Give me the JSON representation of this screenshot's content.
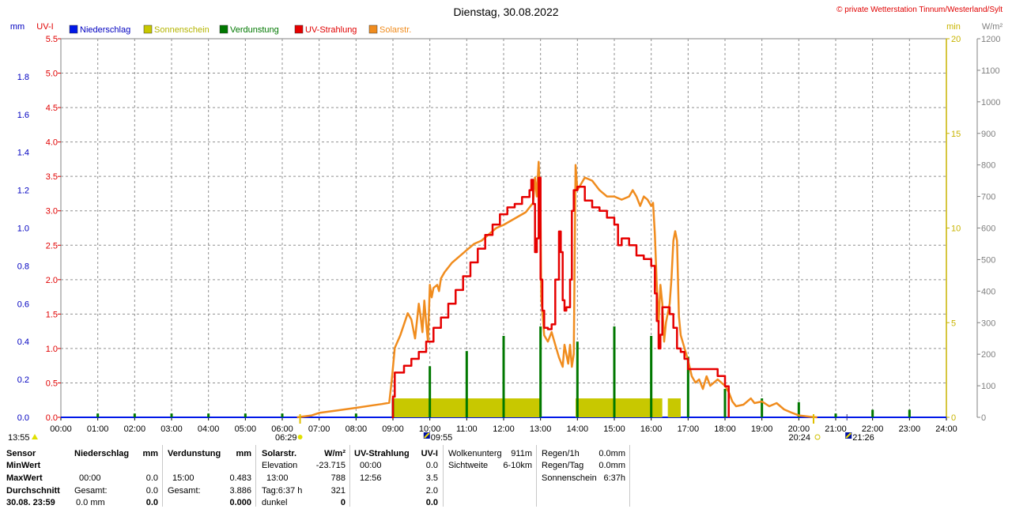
{
  "title": "Dienstag, 30.08.2022",
  "copyright": "© private Wetterstation Tinnum/Westerland/Sylt",
  "colors": {
    "niederschlag": "#0018e8",
    "sonnenschein": "#c8c800",
    "verdunstung": "#007800",
    "uv": "#e60000",
    "solar": "#f08c1e",
    "mm_axis": "#0000c0",
    "uv_axis": "#e00000",
    "min_axis": "#c8b400",
    "wm2_axis": "#808080"
  },
  "chart_data": {
    "type": "line",
    "x_unit": "hour of day",
    "xlim": [
      0,
      24
    ],
    "x_ticks": [
      "00:00",
      "01:00",
      "02:00",
      "03:00",
      "04:00",
      "05:00",
      "06:00",
      "07:00",
      "08:00",
      "09:00",
      "10:00",
      "11:00",
      "12:00",
      "13:00",
      "14:00",
      "15:00",
      "16:00",
      "17:00",
      "18:00",
      "19:00",
      "20:00",
      "21:00",
      "22:00",
      "23:00",
      "24:00"
    ],
    "axes": {
      "mm": {
        "label": "mm",
        "range": [
          0,
          2.0
        ],
        "ticks": [
          "0.0",
          "0.2",
          "0.4",
          "0.6",
          "0.8",
          "1.0",
          "1.2",
          "1.4",
          "1.6",
          "1.8"
        ]
      },
      "uv": {
        "label": "UV-I",
        "range": [
          0,
          5.5
        ],
        "ticks": [
          "0.0",
          "0.5",
          "1.0",
          "1.5",
          "2.0",
          "2.5",
          "3.0",
          "3.5",
          "4.0",
          "4.5",
          "5.0",
          "5.5"
        ]
      },
      "min": {
        "label": "min",
        "range": [
          0,
          20
        ],
        "ticks": [
          "0",
          "5",
          "10",
          "15",
          "20"
        ]
      },
      "wm2": {
        "label": "W/m²",
        "range": [
          0,
          1200
        ],
        "ticks": [
          "0",
          "100",
          "200",
          "300",
          "400",
          "500",
          "600",
          "700",
          "800",
          "900",
          "1000",
          "1100",
          "1200"
        ]
      }
    },
    "legend": [
      "Niederschlag",
      "Sonnenschein",
      "Verdunstung",
      "UV-Strahlung",
      "Solarstr."
    ],
    "legend_position": "top",
    "grid": true,
    "series": [
      {
        "name": "Solarstr.",
        "axis": "wm2",
        "points": [
          [
            6.4,
            0
          ],
          [
            6.8,
            6
          ],
          [
            7.0,
            14
          ],
          [
            7.5,
            22
          ],
          [
            8.0,
            30
          ],
          [
            8.4,
            37
          ],
          [
            8.7,
            42
          ],
          [
            8.9,
            46
          ],
          [
            8.97,
            120
          ],
          [
            9.05,
            220
          ],
          [
            9.2,
            260
          ],
          [
            9.4,
            330
          ],
          [
            9.5,
            310
          ],
          [
            9.6,
            250
          ],
          [
            9.7,
            360
          ],
          [
            9.75,
            320
          ],
          [
            9.8,
            270
          ],
          [
            9.85,
            370
          ],
          [
            9.9,
            300
          ],
          [
            9.95,
            240
          ],
          [
            10.0,
            420
          ],
          [
            10.05,
            380
          ],
          [
            10.1,
            410
          ],
          [
            10.2,
            420
          ],
          [
            10.25,
            400
          ],
          [
            10.3,
            440
          ],
          [
            10.4,
            460
          ],
          [
            10.6,
            490
          ],
          [
            10.8,
            510
          ],
          [
            11.0,
            530
          ],
          [
            11.2,
            550
          ],
          [
            11.4,
            560
          ],
          [
            11.6,
            580
          ],
          [
            11.8,
            600
          ],
          [
            12.0,
            610
          ],
          [
            12.3,
            630
          ],
          [
            12.6,
            650
          ],
          [
            12.8,
            680
          ],
          [
            12.85,
            760
          ],
          [
            12.9,
            700
          ],
          [
            12.95,
            810
          ],
          [
            13.0,
            650
          ],
          [
            13.02,
            380
          ],
          [
            13.1,
            260
          ],
          [
            13.2,
            240
          ],
          [
            13.3,
            270
          ],
          [
            13.4,
            230
          ],
          [
            13.5,
            190
          ],
          [
            13.6,
            160
          ],
          [
            13.65,
            230
          ],
          [
            13.7,
            200
          ],
          [
            13.75,
            170
          ],
          [
            13.8,
            230
          ],
          [
            13.85,
            160
          ],
          [
            13.9,
            200
          ],
          [
            13.95,
            800
          ],
          [
            14.0,
            720
          ],
          [
            14.1,
            740
          ],
          [
            14.2,
            760
          ],
          [
            14.4,
            750
          ],
          [
            14.6,
            720
          ],
          [
            14.8,
            700
          ],
          [
            15.0,
            700
          ],
          [
            15.2,
            690
          ],
          [
            15.4,
            700
          ],
          [
            15.5,
            720
          ],
          [
            15.6,
            700
          ],
          [
            15.7,
            670
          ],
          [
            15.8,
            700
          ],
          [
            15.9,
            690
          ],
          [
            16.0,
            670
          ],
          [
            16.05,
            680
          ],
          [
            16.1,
            580
          ],
          [
            16.15,
            420
          ],
          [
            16.2,
            300
          ],
          [
            16.25,
            420
          ],
          [
            16.3,
            360
          ],
          [
            16.35,
            240
          ],
          [
            16.4,
            300
          ],
          [
            16.5,
            360
          ],
          [
            16.55,
            440
          ],
          [
            16.6,
            560
          ],
          [
            16.65,
            590
          ],
          [
            16.7,
            560
          ],
          [
            16.75,
            320
          ],
          [
            16.8,
            260
          ],
          [
            16.9,
            220
          ],
          [
            17.0,
            180
          ],
          [
            17.1,
            130
          ],
          [
            17.2,
            110
          ],
          [
            17.3,
            120
          ],
          [
            17.4,
            90
          ],
          [
            17.5,
            130
          ],
          [
            17.6,
            100
          ],
          [
            17.8,
            120
          ],
          [
            18.0,
            100
          ],
          [
            18.1,
            80
          ],
          [
            18.2,
            50
          ],
          [
            18.3,
            35
          ],
          [
            18.5,
            40
          ],
          [
            18.7,
            60
          ],
          [
            18.8,
            45
          ],
          [
            19.0,
            50
          ],
          [
            19.2,
            35
          ],
          [
            19.4,
            45
          ],
          [
            19.6,
            25
          ],
          [
            19.8,
            15
          ],
          [
            20.0,
            6
          ],
          [
            20.3,
            2
          ],
          [
            20.5,
            0
          ]
        ]
      },
      {
        "name": "UV-Strahlung",
        "axis": "uv",
        "points": [
          [
            8.97,
            0
          ],
          [
            9.0,
            0.3
          ],
          [
            9.05,
            0.65
          ],
          [
            9.3,
            0.75
          ],
          [
            9.5,
            0.85
          ],
          [
            9.7,
            0.95
          ],
          [
            9.9,
            1.1
          ],
          [
            10.1,
            1.3
          ],
          [
            10.3,
            1.45
          ],
          [
            10.5,
            1.65
          ],
          [
            10.7,
            1.85
          ],
          [
            10.9,
            2.05
          ],
          [
            11.1,
            2.25
          ],
          [
            11.3,
            2.45
          ],
          [
            11.5,
            2.65
          ],
          [
            11.7,
            2.8
          ],
          [
            11.9,
            2.95
          ],
          [
            12.1,
            3.05
          ],
          [
            12.3,
            3.1
          ],
          [
            12.5,
            3.2
          ],
          [
            12.7,
            3.3
          ],
          [
            12.75,
            3.45
          ],
          [
            12.8,
            3.1
          ],
          [
            12.85,
            2.4
          ],
          [
            12.9,
            2.6
          ],
          [
            12.95,
            3.48
          ],
          [
            13.0,
            2.0
          ],
          [
            13.05,
            1.55
          ],
          [
            13.1,
            1.3
          ],
          [
            13.2,
            1.28
          ],
          [
            13.3,
            1.35
          ],
          [
            13.4,
            2.0
          ],
          [
            13.5,
            2.7
          ],
          [
            13.55,
            2.4
          ],
          [
            13.6,
            1.7
          ],
          [
            13.65,
            1.55
          ],
          [
            13.7,
            1.6
          ],
          [
            13.8,
            2.0
          ],
          [
            13.85,
            3.0
          ],
          [
            13.9,
            3.3
          ],
          [
            14.0,
            3.35
          ],
          [
            14.2,
            3.15
          ],
          [
            14.4,
            3.05
          ],
          [
            14.6,
            3.0
          ],
          [
            14.8,
            2.9
          ],
          [
            15.0,
            2.8
          ],
          [
            15.1,
            2.5
          ],
          [
            15.2,
            2.6
          ],
          [
            15.4,
            2.5
          ],
          [
            15.6,
            2.35
          ],
          [
            15.8,
            2.3
          ],
          [
            16.0,
            2.2
          ],
          [
            16.1,
            1.8
          ],
          [
            16.15,
            1.4
          ],
          [
            16.2,
            1.0
          ],
          [
            16.25,
            1.2
          ],
          [
            16.3,
            1.6
          ],
          [
            16.4,
            1.6
          ],
          [
            16.5,
            1.5
          ],
          [
            16.6,
            1.3
          ],
          [
            16.7,
            1.0
          ],
          [
            16.8,
            0.95
          ],
          [
            16.9,
            0.85
          ],
          [
            17.0,
            0.7
          ],
          [
            17.5,
            0.7
          ],
          [
            17.8,
            0.6
          ],
          [
            18.0,
            0.45
          ],
          [
            18.1,
            0.0
          ]
        ]
      },
      {
        "name": "Verdunstung",
        "axis": "mm",
        "bars": [
          [
            1,
            0.02
          ],
          [
            2,
            0.02
          ],
          [
            3,
            0.02
          ],
          [
            4,
            0.02
          ],
          [
            5,
            0.02
          ],
          [
            6,
            0.02
          ],
          [
            8,
            0.02
          ],
          [
            9,
            0.1
          ],
          [
            10,
            0.27
          ],
          [
            11,
            0.35
          ],
          [
            12,
            0.43
          ],
          [
            13,
            0.48
          ],
          [
            14,
            0.4
          ],
          [
            15,
            0.48
          ],
          [
            16,
            0.43
          ],
          [
            17,
            0.32
          ],
          [
            18,
            0.15
          ],
          [
            19,
            0.1
          ],
          [
            20,
            0.08
          ],
          [
            21,
            0.02
          ],
          [
            22,
            0.04
          ],
          [
            23,
            0.04
          ]
        ]
      },
      {
        "name": "Sonnenschein",
        "axis": "min",
        "blocks": [
          [
            9.0,
            13.0,
            1.0
          ],
          [
            13.95,
            16.3,
            1.0
          ],
          [
            16.45,
            16.8,
            1.0
          ]
        ]
      }
    ],
    "events": {
      "sunrise": "06:29",
      "sunset": "20:24",
      "time_left": "13:55",
      "moon_a": "09:55",
      "moon_b": "21:26"
    }
  },
  "table": {
    "col1": {
      "head": "Sensor",
      "rows": [
        "MinWert",
        "MaxWert",
        "Durchschnitt",
        "30.08. 23:59"
      ]
    },
    "niederschlag": {
      "head": "Niederschlag",
      "unit": "mm",
      "rows": [
        [
          "",
          ""
        ],
        [
          "00:00",
          "0.0"
        ],
        [
          "Gesamt:",
          "0.0"
        ],
        [
          "0.0 mm",
          "0.0"
        ]
      ]
    },
    "verdunstung": {
      "head": "Verdunstung",
      "unit": "mm",
      "rows": [
        [
          "",
          ""
        ],
        [
          "15:00",
          "0.483"
        ],
        [
          "Gesamt:",
          "3.886"
        ],
        [
          "",
          "0.000"
        ]
      ]
    },
    "solar": {
      "head": "Solarstr.",
      "unit": "W/m²",
      "rows": [
        [
          "Elevation",
          "-23.715"
        ],
        [
          "13:00",
          "788"
        ],
        [
          "Tag:6:37 h",
          "321"
        ],
        [
          "dunkel",
          "0"
        ]
      ]
    },
    "uv": {
      "head": "UV-Strahlung",
      "unit": "UV-I",
      "rows": [
        [
          "00:00",
          "0.0"
        ],
        [
          "12:56",
          "3.5"
        ],
        [
          "",
          "2.0"
        ],
        [
          "",
          "0.0"
        ]
      ]
    },
    "cloud": {
      "rows": [
        [
          "Wolkenunterg",
          "911m"
        ],
        [
          "Sichtweite",
          "6-10km"
        ]
      ]
    },
    "regen": {
      "rows": [
        [
          "Regen/1h",
          "0.0mm"
        ],
        [
          "Regen/Tag",
          "0.0mm"
        ],
        [
          "Sonnenschein",
          "6:37h"
        ]
      ]
    }
  }
}
